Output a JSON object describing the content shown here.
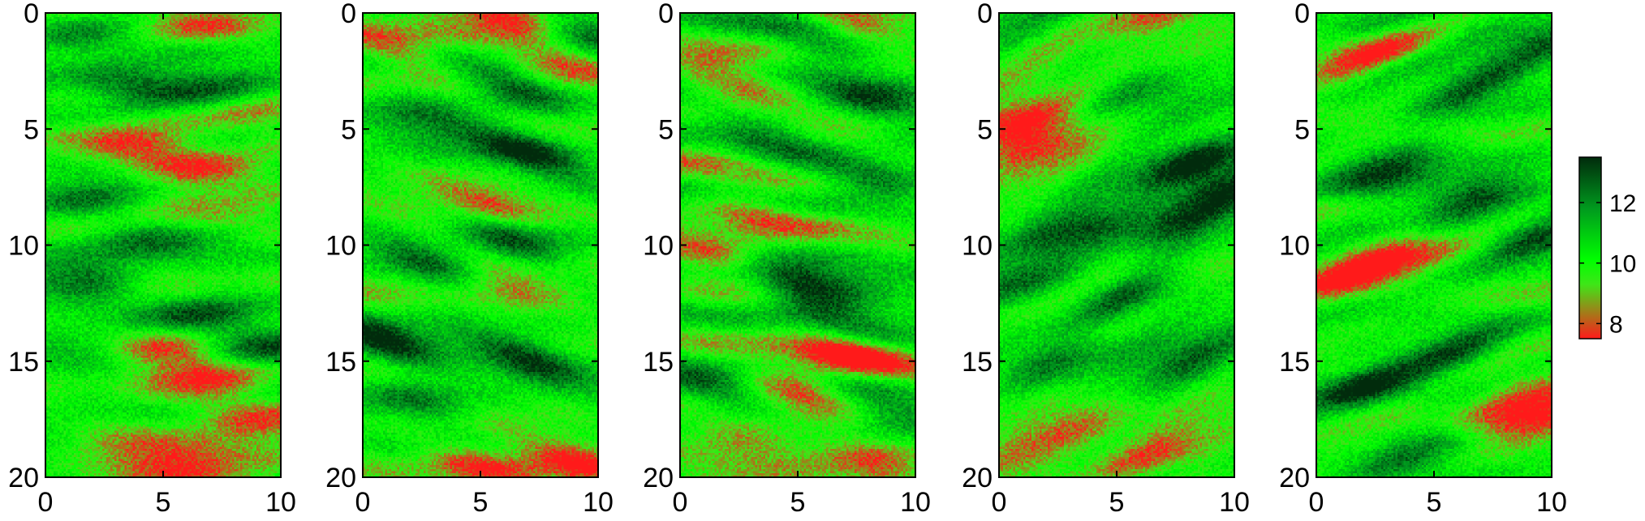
{
  "chart_data": {
    "type": "heatmap",
    "layout": "five side-by-side field realizations with a shared colorbar",
    "panels": [
      {
        "name": "",
        "xlim": [
          0,
          10
        ],
        "ylim": [
          0,
          20
        ],
        "y_reversed": true,
        "x_ticks": [
          0,
          5,
          10
        ],
        "y_ticks": [
          0,
          5,
          10,
          15,
          20
        ],
        "anisotropy_angle_deg": 0,
        "seed": 11,
        "blobs": [
          {
            "x": 6.8,
            "y": 0.5,
            "v": 7.8
          },
          {
            "x": 1.2,
            "y": 1.2,
            "v": 12.2
          },
          {
            "x": 4.0,
            "y": 3.2,
            "v": 12.6
          },
          {
            "x": 7.5,
            "y": 3.0,
            "v": 12.4
          },
          {
            "x": 9.3,
            "y": 4.2,
            "v": 8.0
          },
          {
            "x": 4.0,
            "y": 5.7,
            "v": 7.6
          },
          {
            "x": 6.5,
            "y": 6.9,
            "v": 7.8
          },
          {
            "x": 2.0,
            "y": 8.0,
            "v": 12.3
          },
          {
            "x": 4.6,
            "y": 10.0,
            "v": 13.0
          },
          {
            "x": 1.5,
            "y": 11.5,
            "v": 12.8
          },
          {
            "x": 5.0,
            "y": 11.4,
            "v": 7.8
          },
          {
            "x": 6.5,
            "y": 12.8,
            "v": 12.6
          },
          {
            "x": 5.0,
            "y": 14.3,
            "v": 8.0
          },
          {
            "x": 2.0,
            "y": 15.4,
            "v": 12.4
          },
          {
            "x": 7.0,
            "y": 15.7,
            "v": 7.6
          },
          {
            "x": 9.0,
            "y": 14.5,
            "v": 12.5
          },
          {
            "x": 3.5,
            "y": 18.5,
            "v": 7.8
          },
          {
            "x": 8.5,
            "y": 17.5,
            "v": 8.0
          },
          {
            "x": 6.0,
            "y": 19.8,
            "v": 7.8
          }
        ]
      },
      {
        "name": "",
        "xlim": [
          0,
          10
        ],
        "ylim": [
          0,
          20
        ],
        "y_reversed": true,
        "x_ticks": [
          0,
          5,
          10
        ],
        "y_ticks": [
          0,
          5,
          10,
          15,
          20
        ],
        "anisotropy_angle_deg": 17,
        "seed": 23,
        "blobs": [
          {
            "x": 6.2,
            "y": 0.2,
            "v": 7.4
          },
          {
            "x": 9.2,
            "y": 1.2,
            "v": 13.2
          },
          {
            "x": 1.5,
            "y": 1.6,
            "v": 7.8
          },
          {
            "x": 6.5,
            "y": 3.2,
            "v": 12.8
          },
          {
            "x": 8.8,
            "y": 2.3,
            "v": 7.8
          },
          {
            "x": 2.5,
            "y": 4.5,
            "v": 12.4
          },
          {
            "x": 7.0,
            "y": 6.0,
            "v": 12.6
          },
          {
            "x": 5.5,
            "y": 8.2,
            "v": 8.2
          },
          {
            "x": 6.5,
            "y": 9.8,
            "v": 13.0
          },
          {
            "x": 3.0,
            "y": 11.0,
            "v": 12.4
          },
          {
            "x": 6.0,
            "y": 12.1,
            "v": 8.0
          },
          {
            "x": 1.0,
            "y": 14.2,
            "v": 12.8
          },
          {
            "x": 7.0,
            "y": 14.8,
            "v": 13.0
          },
          {
            "x": 2.5,
            "y": 16.5,
            "v": 12.6
          },
          {
            "x": 9.2,
            "y": 19.2,
            "v": 7.8
          },
          {
            "x": 5.0,
            "y": 19.5,
            "v": 8.2
          }
        ]
      },
      {
        "name": "",
        "xlim": [
          0,
          10
        ],
        "ylim": [
          0,
          20
        ],
        "y_reversed": true,
        "x_ticks": [
          0,
          5,
          10
        ],
        "y_ticks": [
          0,
          5,
          10,
          15,
          20
        ],
        "anisotropy_angle_deg": 14,
        "seed": 37,
        "blobs": [
          {
            "x": 7.0,
            "y": 0.1,
            "v": 7.6
          },
          {
            "x": 6.0,
            "y": 1.2,
            "v": 12.4
          },
          {
            "x": 2.5,
            "y": 3.0,
            "v": 8.0
          },
          {
            "x": 8.5,
            "y": 4.0,
            "v": 12.4
          },
          {
            "x": 4.0,
            "y": 5.5,
            "v": 12.6
          },
          {
            "x": 8.5,
            "y": 7.3,
            "v": 12.8
          },
          {
            "x": 3.0,
            "y": 8.7,
            "v": 8.0
          },
          {
            "x": 1.5,
            "y": 10.5,
            "v": 7.8
          },
          {
            "x": 5.0,
            "y": 11.5,
            "v": 12.4
          },
          {
            "x": 6.2,
            "y": 12.9,
            "v": 13.2
          },
          {
            "x": 7.0,
            "y": 14.6,
            "v": 7.2
          },
          {
            "x": 5.0,
            "y": 16.3,
            "v": 7.6
          },
          {
            "x": 1.5,
            "y": 16.0,
            "v": 12.4
          },
          {
            "x": 3.0,
            "y": 18.4,
            "v": 7.8
          },
          {
            "x": 8.0,
            "y": 19.3,
            "v": 7.8
          },
          {
            "x": 9.0,
            "y": 17.0,
            "v": 12.4
          }
        ]
      },
      {
        "name": "",
        "xlim": [
          0,
          10
        ],
        "ylim": [
          0,
          20
        ],
        "y_reversed": true,
        "x_ticks": [
          0,
          5,
          10
        ],
        "y_ticks": [
          0,
          5,
          10,
          15,
          20
        ],
        "anisotropy_angle_deg": -18,
        "seed": 53,
        "blobs": [
          {
            "x": 7.0,
            "y": 0.1,
            "v": 7.8
          },
          {
            "x": 0.8,
            "y": 4.5,
            "v": 7.6
          },
          {
            "x": 1.5,
            "y": 5.8,
            "v": 7.2
          },
          {
            "x": 6.0,
            "y": 3.5,
            "v": 12.6
          },
          {
            "x": 8.5,
            "y": 6.5,
            "v": 13.4
          },
          {
            "x": 9.8,
            "y": 7.5,
            "v": 13.4
          },
          {
            "x": 3.5,
            "y": 9.5,
            "v": 12.6
          },
          {
            "x": 7.5,
            "y": 9.2,
            "v": 13.2
          },
          {
            "x": 1.0,
            "y": 11.5,
            "v": 12.6
          },
          {
            "x": 5.5,
            "y": 12.2,
            "v": 12.8
          },
          {
            "x": 2.0,
            "y": 15.0,
            "v": 12.4
          },
          {
            "x": 8.0,
            "y": 15.0,
            "v": 12.2
          },
          {
            "x": 3.0,
            "y": 17.8,
            "v": 8.0
          },
          {
            "x": 7.0,
            "y": 19.0,
            "v": 8.2
          },
          {
            "x": 0.5,
            "y": 19.5,
            "v": 8.0
          }
        ]
      },
      {
        "name": "",
        "xlim": [
          0,
          10
        ],
        "ylim": [
          0,
          20
        ],
        "y_reversed": true,
        "x_ticks": [
          0,
          5,
          10
        ],
        "y_ticks": [
          0,
          5,
          10,
          15,
          20
        ],
        "anisotropy_angle_deg": -20,
        "seed": 71,
        "blobs": [
          {
            "x": 2.0,
            "y": 2.0,
            "v": 8.2
          },
          {
            "x": 9.5,
            "y": 1.5,
            "v": 12.6
          },
          {
            "x": 6.5,
            "y": 3.2,
            "v": 13.0
          },
          {
            "x": 3.0,
            "y": 7.0,
            "v": 13.4
          },
          {
            "x": 6.5,
            "y": 8.0,
            "v": 13.0
          },
          {
            "x": 9.5,
            "y": 9.5,
            "v": 12.8
          },
          {
            "x": 1.5,
            "y": 11.2,
            "v": 7.8
          },
          {
            "x": 3.5,
            "y": 10.0,
            "v": 8.2
          },
          {
            "x": 6.0,
            "y": 14.5,
            "v": 12.6
          },
          {
            "x": 2.0,
            "y": 16.0,
            "v": 12.8
          },
          {
            "x": 9.5,
            "y": 17.3,
            "v": 7.2
          },
          {
            "x": 8.5,
            "y": 16.5,
            "v": 8.0
          },
          {
            "x": 4.0,
            "y": 19.0,
            "v": 12.4
          }
        ]
      }
    ],
    "colorbar": {
      "range": [
        7.5,
        13.5
      ],
      "ticks": [
        8,
        10,
        12
      ],
      "colormap": [
        {
          "v": 7.5,
          "color": "#ff1a1a"
        },
        {
          "v": 9.3,
          "color": "#3ee618"
        },
        {
          "v": 10.1,
          "color": "#00ff00"
        },
        {
          "v": 11.8,
          "color": "#009a1e"
        },
        {
          "v": 13.5,
          "color": "#012b0c"
        }
      ]
    }
  }
}
